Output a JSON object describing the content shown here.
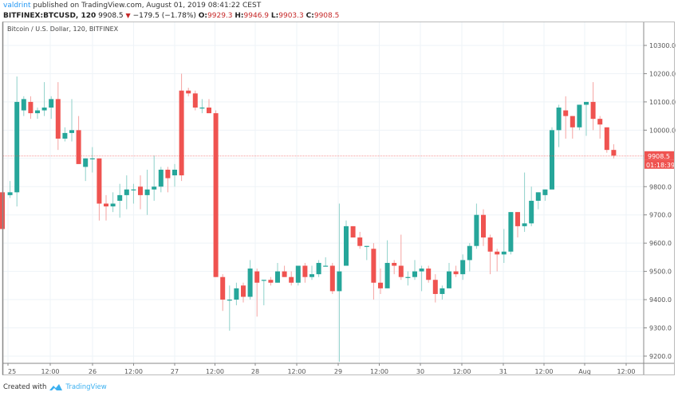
{
  "header": {
    "author": "valdrint",
    "published_text": "published on TradingView.com, August 01, 2019 08:41:22 CEST",
    "symbol": "BITFINEX:BTCUSD, 120",
    "last": "9908.5",
    "change": "−179.5 (−1.78%)",
    "direction_icon": "down-triangle",
    "o_label": "O:",
    "o": "9929.3",
    "h_label": "H:",
    "h": "9946.9",
    "l_label": "L:",
    "l": "9903.3",
    "c_label": "C:",
    "c": "9908.5"
  },
  "legend": "Bitcoin / U.S. Dollar, 120, BITFINEX",
  "price_label": {
    "value": "9908.5",
    "countdown": "01:18:39"
  },
  "footer": {
    "created_with": "Created with",
    "brand": "TradingView"
  },
  "colors": {
    "up": "#26a69a",
    "down": "#ef5350",
    "up_wick": "#8fd1ca",
    "down_wick": "#f5a3a1",
    "grid": "#eef3f7",
    "price_line": "#ef5350",
    "brand": "#3bb0f0"
  },
  "chart_data": {
    "type": "candlestick",
    "title": "Bitcoin / U.S. Dollar, 120, BITFINEX",
    "xlabel": "",
    "ylabel": "",
    "ylim": [
      9160,
      10380
    ],
    "y_ticks": [
      "10300.0",
      "10200.0",
      "10100.0",
      "10000.0",
      "9800.0",
      "9700.0",
      "9600.0",
      "9500.0",
      "9400.0",
      "9300.0",
      "9200.0"
    ],
    "x_ticks": [
      "25",
      "12:00",
      "26",
      "12:00",
      "27",
      "12:00",
      "28",
      "12:00",
      "29",
      "12:00",
      "30",
      "12:00",
      "31",
      "12:00",
      "Aug",
      "12:00"
    ],
    "grid": true,
    "last_price": 9908.5,
    "candles": [
      [
        9780,
        9780,
        9650,
        9650
      ],
      [
        9770,
        9820,
        9760,
        9780
      ],
      [
        9780,
        10190,
        9730,
        10100
      ],
      [
        10070,
        10120,
        10050,
        10110
      ],
      [
        10100,
        10120,
        10040,
        10060
      ],
      [
        10060,
        10080,
        10040,
        10070
      ],
      [
        10070,
        10170,
        10050,
        10080
      ],
      [
        10080,
        10120,
        10040,
        10110
      ],
      [
        10110,
        10170,
        9930,
        9970
      ],
      [
        9970,
        10010,
        9960,
        9990
      ],
      [
        9990,
        10110,
        9960,
        10000
      ],
      [
        10000,
        10050,
        9880,
        9880
      ],
      [
        9870,
        9900,
        9820,
        9900
      ],
      [
        9900,
        9940,
        9850,
        9900
      ],
      [
        9900,
        9900,
        9680,
        9740
      ],
      [
        9740,
        9770,
        9680,
        9730
      ],
      [
        9730,
        9780,
        9710,
        9740
      ],
      [
        9750,
        9810,
        9690,
        9770
      ],
      [
        9770,
        9840,
        9720,
        9790
      ],
      [
        9790,
        9810,
        9740,
        9790
      ],
      [
        9800,
        9840,
        9720,
        9770
      ],
      [
        9770,
        9860,
        9700,
        9790
      ],
      [
        9790,
        9910,
        9750,
        9800
      ],
      [
        9800,
        9870,
        9780,
        9860
      ],
      [
        9860,
        9870,
        9780,
        9830
      ],
      [
        9840,
        9880,
        9800,
        9860
      ],
      [
        10140,
        10200,
        9820,
        9840
      ],
      [
        10140,
        10150,
        10120,
        10130
      ],
      [
        10130,
        10140,
        10070,
        10080
      ],
      [
        10080,
        10110,
        10060,
        10080
      ],
      [
        10080,
        10110,
        10060,
        10060
      ],
      [
        10060,
        10070,
        9520,
        9480
      ],
      [
        9480,
        9490,
        9360,
        9400
      ],
      [
        9400,
        9450,
        9290,
        9400
      ],
      [
        9400,
        9460,
        9380,
        9440
      ],
      [
        9450,
        9460,
        9390,
        9410
      ],
      [
        9410,
        9540,
        9400,
        9510
      ],
      [
        9500,
        9510,
        9340,
        9460
      ],
      [
        9470,
        9470,
        9380,
        9470
      ],
      [
        9470,
        9480,
        9450,
        9460
      ],
      [
        9460,
        9530,
        9460,
        9500
      ],
      [
        9500,
        9520,
        9480,
        9480
      ],
      [
        9480,
        9500,
        9450,
        9460
      ],
      [
        9460,
        9520,
        9450,
        9520
      ],
      [
        9520,
        9530,
        9460,
        9480
      ],
      [
        9480,
        9520,
        9470,
        9490
      ],
      [
        9490,
        9540,
        9480,
        9530
      ],
      [
        9520,
        9550,
        9520,
        9520
      ],
      [
        9520,
        9530,
        9420,
        9430
      ],
      [
        9430,
        9740,
        9180,
        9500
      ],
      [
        9520,
        9680,
        9540,
        9660
      ],
      [
        9660,
        9650,
        9620,
        9620
      ],
      [
        9620,
        9640,
        9580,
        9590
      ],
      [
        9590,
        9590,
        9540,
        9590
      ],
      [
        9580,
        9600,
        9400,
        9460
      ],
      [
        9460,
        9510,
        9420,
        9440
      ],
      [
        9440,
        9610,
        9450,
        9530
      ],
      [
        9530,
        9540,
        9490,
        9520
      ],
      [
        9520,
        9630,
        9470,
        9480
      ],
      [
        9480,
        9500,
        9450,
        9480
      ],
      [
        9480,
        9540,
        9470,
        9500
      ],
      [
        9500,
        9520,
        9430,
        9510
      ],
      [
        9510,
        9520,
        9460,
        9470
      ],
      [
        9470,
        9490,
        9390,
        9420
      ],
      [
        9420,
        9450,
        9400,
        9440
      ],
      [
        9440,
        9530,
        9440,
        9500
      ],
      [
        9500,
        9520,
        9480,
        9490
      ],
      [
        9490,
        9560,
        9470,
        9540
      ],
      [
        9540,
        9600,
        9500,
        9590
      ],
      [
        9590,
        9740,
        9580,
        9700
      ],
      [
        9700,
        9720,
        9590,
        9620
      ],
      [
        9620,
        9630,
        9490,
        9570
      ],
      [
        9570,
        9580,
        9500,
        9560
      ],
      [
        9560,
        9650,
        9530,
        9570
      ],
      [
        9570,
        9710,
        9560,
        9710
      ],
      [
        9710,
        9710,
        9620,
        9660
      ],
      [
        9660,
        9850,
        9640,
        9670
      ],
      [
        9670,
        9800,
        9660,
        9750
      ],
      [
        9750,
        9760,
        9720,
        9780
      ],
      [
        9770,
        9790,
        9750,
        9790
      ],
      [
        9790,
        10010,
        9790,
        10000
      ],
      [
        10000,
        10090,
        9940,
        10080
      ],
      [
        10070,
        10120,
        9970,
        10050
      ],
      [
        10050,
        10050,
        9970,
        10010
      ],
      [
        10010,
        10080,
        10000,
        10090
      ],
      [
        10090,
        10090,
        9980,
        10100
      ],
      [
        10100,
        10170,
        10000,
        10040
      ],
      [
        10040,
        10050,
        9970,
        10020
      ],
      [
        10010,
        10010,
        9920,
        9930
      ],
      [
        9930,
        9950,
        9900,
        9910
      ]
    ]
  }
}
